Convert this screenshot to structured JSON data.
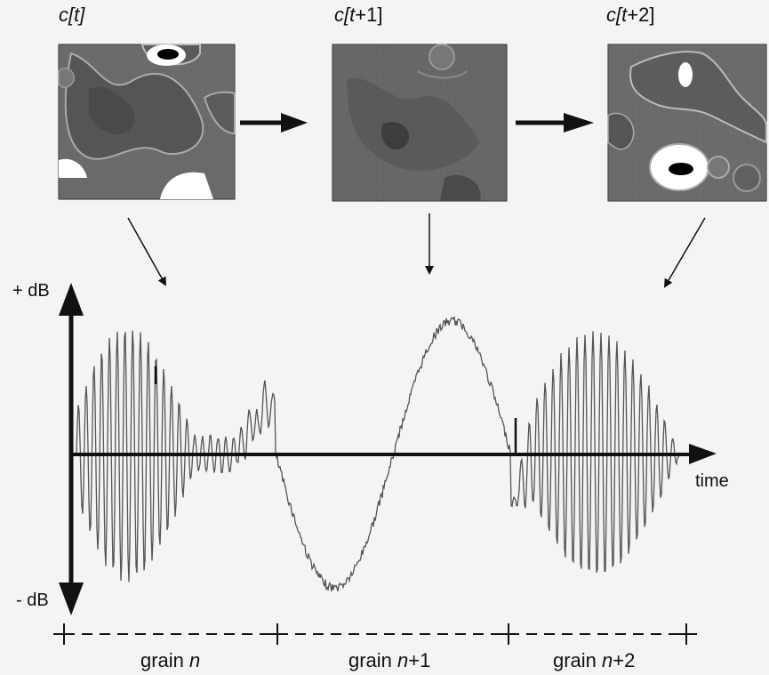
{
  "states": [
    {
      "prefix": "c[",
      "var": "t",
      "suffix": "]"
    },
    {
      "prefix": "c[",
      "var": "t",
      "suffix": "+1]"
    },
    {
      "prefix": "c[",
      "var": "t",
      "suffix": "+2]"
    }
  ],
  "axis": {
    "y_top": "+ dB",
    "y_bottom": "- dB",
    "x": "time"
  },
  "grains": [
    {
      "prefix": "grain ",
      "var": "n",
      "suffix": ""
    },
    {
      "prefix": "grain ",
      "var": "n",
      "suffix": "+1"
    },
    {
      "prefix": "grain ",
      "var": "n",
      "suffix": "+2"
    }
  ],
  "colors": {
    "background": "#f4f4f4",
    "waveform": "#555555",
    "axis": "#111111",
    "cell_bg": "#6e6e6e",
    "cell_dark": "#3e3e3e",
    "cell_edge": "#b8b8b8"
  }
}
